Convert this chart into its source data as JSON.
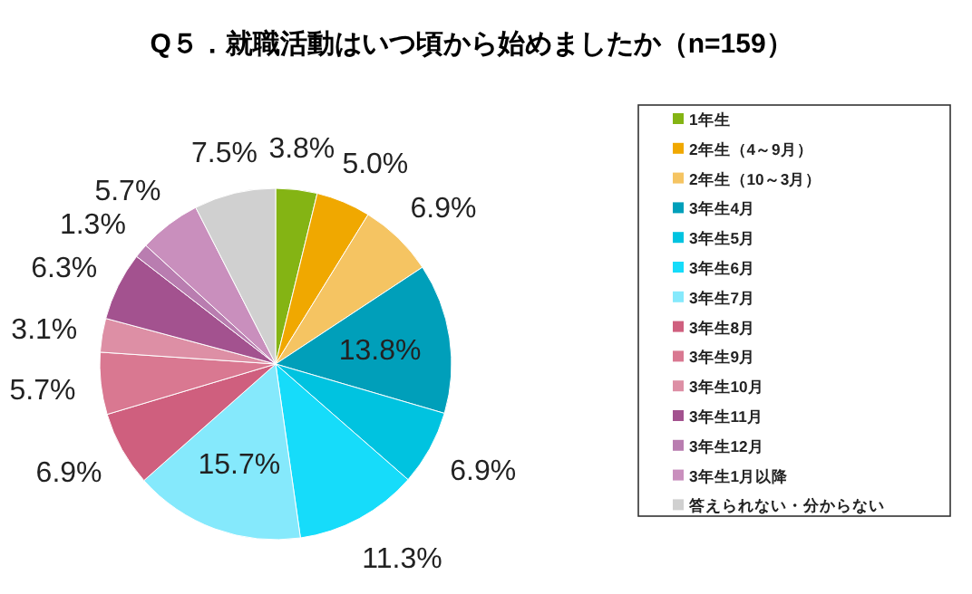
{
  "chart_data": {
    "type": "pie",
    "title": "Q５．就職活動はいつ頃から始めましたか（n=159）",
    "categories": [
      "1年生",
      "2年生（4～9月）",
      "2年生（10～3月）",
      "3年生4月",
      "3年生5月",
      "3年生6月",
      "3年生7月",
      "3年生8月",
      "3年生9月",
      "3年生10月",
      "3年生11月",
      "3年生12月",
      "3年生1月以降",
      "答えられない・分からない"
    ],
    "values": [
      3.8,
      5.0,
      6.9,
      13.8,
      6.9,
      11.3,
      15.7,
      6.9,
      5.7,
      3.1,
      6.3,
      1.3,
      5.7,
      7.5
    ],
    "value_labels": [
      "3.8%",
      "5.0%",
      "6.9%",
      "13.8%",
      "6.9%",
      "11.3%",
      "15.7%",
      "6.9%",
      "5.7%",
      "3.1%",
      "6.3%",
      "1.3%",
      "5.7%",
      "7.5%"
    ],
    "colors": [
      "#84b414",
      "#f0a800",
      "#f5c462",
      "#009fba",
      "#00c3e0",
      "#16dcfa",
      "#85e9fc",
      "#cf5f7e",
      "#d97891",
      "#dd8fa5",
      "#a3528f",
      "#b97db0",
      "#c98fbd",
      "#d0d0d0"
    ],
    "legend": "right"
  }
}
